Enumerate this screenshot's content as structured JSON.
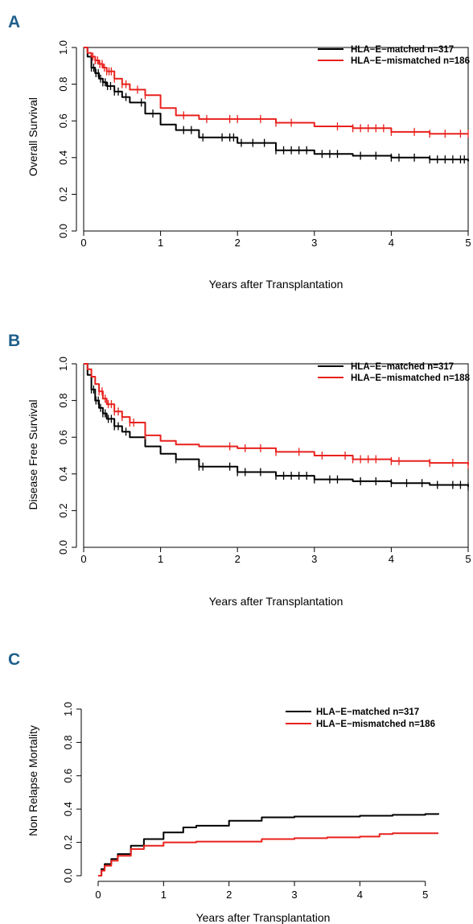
{
  "chart_data": [
    {
      "panel": "A",
      "type": "line",
      "xlabel": "Years after Transplantation",
      "ylabel": "Overall Survival",
      "xlim": [
        0,
        5
      ],
      "ylim": [
        0,
        1
      ],
      "xticks": [
        0,
        1,
        2,
        3,
        4,
        5
      ],
      "yticks": [
        "0.0",
        "0.2",
        "0.4",
        "0.6",
        "0.8",
        "1.0"
      ],
      "legend_position": "top-right",
      "frame": true,
      "series": [
        {
          "name": "HLA−E−matched n=317",
          "color": "#000000",
          "x": [
            0,
            0.05,
            0.1,
            0.15,
            0.2,
            0.25,
            0.3,
            0.4,
            0.5,
            0.6,
            0.8,
            1.0,
            1.2,
            1.5,
            2.0,
            2.5,
            3.0,
            3.5,
            4.0,
            4.5,
            5.0
          ],
          "y": [
            1.0,
            0.95,
            0.89,
            0.86,
            0.83,
            0.81,
            0.79,
            0.76,
            0.73,
            0.7,
            0.64,
            0.58,
            0.55,
            0.51,
            0.48,
            0.44,
            0.42,
            0.41,
            0.4,
            0.39,
            0.38
          ],
          "censor_x": [
            0.1,
            0.13,
            0.16,
            0.19,
            0.22,
            0.25,
            0.28,
            0.31,
            0.35,
            0.4,
            0.45,
            0.55,
            0.75,
            0.9,
            1.3,
            1.4,
            1.55,
            1.8,
            1.9,
            1.95,
            2.05,
            2.2,
            2.35,
            2.5,
            2.6,
            2.7,
            2.8,
            2.9,
            3.1,
            3.2,
            3.3,
            3.6,
            3.8,
            4.0,
            4.1,
            4.3,
            4.5,
            4.6,
            4.7,
            4.8,
            4.9,
            4.95
          ]
        },
        {
          "name": "HLA−E−mismatched n=186",
          "color": "#e8211d",
          "x": [
            0,
            0.05,
            0.1,
            0.15,
            0.2,
            0.25,
            0.3,
            0.4,
            0.5,
            0.6,
            0.8,
            1.0,
            1.2,
            1.5,
            2.0,
            2.5,
            3.0,
            3.5,
            4.0,
            4.5,
            5.0
          ],
          "y": [
            1.0,
            0.97,
            0.95,
            0.93,
            0.91,
            0.89,
            0.87,
            0.83,
            0.8,
            0.77,
            0.74,
            0.67,
            0.63,
            0.61,
            0.61,
            0.59,
            0.57,
            0.56,
            0.54,
            0.53,
            0.53
          ],
          "censor_x": [
            0.12,
            0.15,
            0.18,
            0.21,
            0.24,
            0.27,
            0.3,
            0.33,
            0.36,
            0.4,
            0.5,
            0.55,
            0.7,
            0.8,
            1.3,
            1.6,
            1.9,
            2.0,
            2.3,
            2.5,
            2.7,
            3.3,
            3.5,
            3.6,
            3.7,
            3.8,
            3.9,
            4.0,
            4.3,
            4.5,
            4.7,
            4.9,
            5.0
          ]
        }
      ]
    },
    {
      "panel": "B",
      "type": "line",
      "xlabel": "Years after Transplantation",
      "ylabel": "Disease Free Survival",
      "xlim": [
        0,
        5
      ],
      "ylim": [
        0,
        1
      ],
      "xticks": [
        0,
        1,
        2,
        3,
        4,
        5
      ],
      "yticks": [
        "0.0",
        "0.2",
        "0.4",
        "0.6",
        "0.8",
        "1.0"
      ],
      "legend_position": "top-right",
      "frame": true,
      "series": [
        {
          "name": "HLA−E−matched n=317",
          "color": "#000000",
          "x": [
            0,
            0.05,
            0.1,
            0.15,
            0.2,
            0.25,
            0.3,
            0.4,
            0.5,
            0.6,
            0.8,
            1.0,
            1.2,
            1.5,
            2.0,
            2.5,
            3.0,
            3.5,
            4.0,
            4.5,
            5.0
          ],
          "y": [
            1.0,
            0.94,
            0.86,
            0.8,
            0.76,
            0.73,
            0.7,
            0.66,
            0.63,
            0.6,
            0.55,
            0.51,
            0.48,
            0.44,
            0.41,
            0.39,
            0.37,
            0.36,
            0.35,
            0.34,
            0.33
          ],
          "censor_x": [
            0.1,
            0.13,
            0.16,
            0.19,
            0.22,
            0.25,
            0.28,
            0.32,
            0.36,
            0.4,
            0.45,
            0.55,
            1.2,
            1.5,
            1.55,
            1.9,
            2.0,
            2.1,
            2.3,
            2.5,
            2.6,
            2.7,
            2.8,
            2.9,
            3.0,
            3.2,
            3.3,
            3.6,
            3.8,
            4.0,
            4.2,
            4.4,
            4.6,
            4.8,
            4.9,
            5.0
          ]
        },
        {
          "name": "HLA−E−mismatched n=188",
          "color": "#e8211d",
          "x": [
            0,
            0.05,
            0.1,
            0.15,
            0.2,
            0.25,
            0.3,
            0.4,
            0.5,
            0.6,
            0.8,
            1.0,
            1.2,
            1.5,
            2.0,
            2.5,
            3.0,
            3.5,
            4.0,
            4.5,
            5.0
          ],
          "y": [
            1.0,
            0.97,
            0.93,
            0.89,
            0.85,
            0.81,
            0.78,
            0.74,
            0.71,
            0.68,
            0.61,
            0.58,
            0.56,
            0.55,
            0.54,
            0.52,
            0.5,
            0.48,
            0.47,
            0.46,
            0.45
          ],
          "censor_x": [
            0.2,
            0.24,
            0.28,
            0.32,
            0.36,
            0.4,
            0.45,
            0.5,
            0.6,
            0.65,
            0.8,
            1.9,
            2.1,
            2.3,
            2.5,
            2.8,
            3.1,
            3.4,
            3.5,
            3.6,
            3.7,
            3.8,
            4.0,
            4.1,
            4.5,
            4.8,
            5.0
          ]
        }
      ]
    },
    {
      "panel": "C",
      "type": "line",
      "xlabel": "Years after Transplantation",
      "ylabel": "Non Relapse Mortality",
      "xlim": [
        0,
        5.2
      ],
      "ylim": [
        0,
        1
      ],
      "xticks": [
        0,
        1,
        2,
        3,
        4,
        5
      ],
      "yticks": [
        "0.0",
        "0.2",
        "0.4",
        "0.6",
        "0.8",
        "1.0"
      ],
      "legend_position": "top-right",
      "frame": false,
      "series": [
        {
          "name": "HLA−E−matched n=317",
          "color": "#000000",
          "x": [
            0,
            0.05,
            0.1,
            0.2,
            0.3,
            0.5,
            0.7,
            1.0,
            1.3,
            1.5,
            2.0,
            2.5,
            3.0,
            3.5,
            4.0,
            4.5,
            5.0,
            5.2
          ],
          "y": [
            0,
            0.04,
            0.07,
            0.1,
            0.13,
            0.18,
            0.22,
            0.26,
            0.29,
            0.3,
            0.33,
            0.35,
            0.355,
            0.355,
            0.36,
            0.365,
            0.37,
            0.375
          ],
          "censor_x": []
        },
        {
          "name": "HLA−E−mismatched n=186",
          "color": "#e8211d",
          "x": [
            0,
            0.05,
            0.1,
            0.2,
            0.3,
            0.5,
            0.7,
            1.0,
            1.3,
            1.5,
            2.0,
            2.5,
            3.0,
            3.5,
            4.0,
            4.3,
            4.5,
            5.0,
            5.2
          ],
          "y": [
            0,
            0.03,
            0.06,
            0.09,
            0.12,
            0.16,
            0.18,
            0.2,
            0.2,
            0.205,
            0.205,
            0.22,
            0.225,
            0.23,
            0.235,
            0.25,
            0.255,
            0.255,
            0.255
          ],
          "censor_x": []
        }
      ]
    }
  ]
}
